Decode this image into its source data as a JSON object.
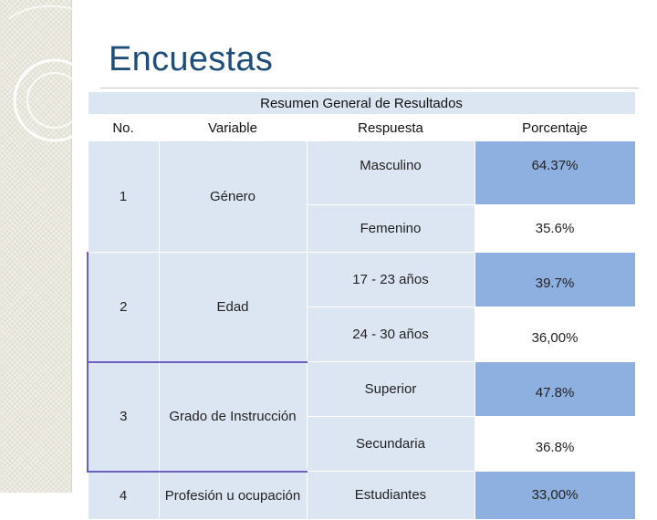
{
  "title": "Encuestas",
  "table": {
    "caption": "Resumen General de Resultados",
    "headers": {
      "no": "No.",
      "variable": "Variable",
      "respuesta": "Respuesta",
      "porcentaje": "Porcentaje"
    },
    "groups": [
      {
        "no": "1",
        "variable": "Género",
        "responses": [
          {
            "respuesta": "Masculino",
            "porcentaje": "64.37%"
          },
          {
            "respuesta": "Femenino",
            "porcentaje": "35.6%"
          }
        ]
      },
      {
        "no": "2",
        "variable": "Edad",
        "responses": [
          {
            "respuesta": "17 - 23 años",
            "porcentaje": "39.7%"
          },
          {
            "respuesta": "24 - 30 años",
            "porcentaje": "36,00%"
          }
        ]
      },
      {
        "no": "3",
        "variable": "Grado de Instrucción",
        "responses": [
          {
            "respuesta": "Superior",
            "porcentaje": "47.8%"
          },
          {
            "respuesta": "Secundaria",
            "porcentaje": "36.8%"
          }
        ]
      },
      {
        "no": "4",
        "variable": "Profesión u ocupación",
        "responses": [
          {
            "respuesta": "Estudiantes",
            "porcentaje": "33,00%"
          }
        ]
      }
    ]
  },
  "colors": {
    "title": "#1f4e79",
    "light_blue": "#dce6f2",
    "mid_blue": "#8eb0e0",
    "accent_purple": "#6c5fc2"
  }
}
